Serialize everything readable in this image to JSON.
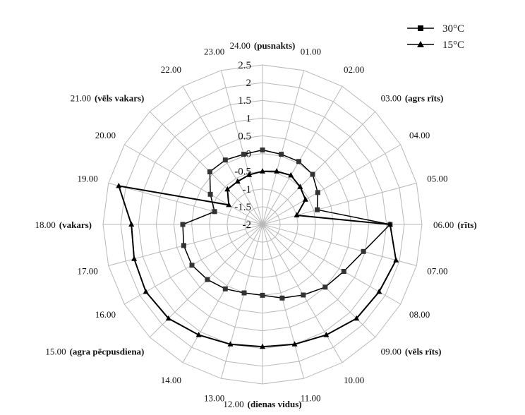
{
  "chart_data": {
    "type": "radar",
    "title": "",
    "categories": [
      {
        "time": "24.00",
        "note": "(pusnakts)"
      },
      {
        "time": "01.00",
        "note": ""
      },
      {
        "time": "02.00",
        "note": ""
      },
      {
        "time": "03.00",
        "note": "(agrs rīts)"
      },
      {
        "time": "04.00",
        "note": ""
      },
      {
        "time": "05.00",
        "note": ""
      },
      {
        "time": "06.00",
        "note": "(rīts)"
      },
      {
        "time": "07.00",
        "note": ""
      },
      {
        "time": "08.00",
        "note": ""
      },
      {
        "time": "09.00",
        "note": "(vēls rīts)"
      },
      {
        "time": "10.00",
        "note": ""
      },
      {
        "time": "11.00",
        "note": ""
      },
      {
        "time": "12.00",
        "note": "(dienas vidus)"
      },
      {
        "time": "13.00",
        "note": ""
      },
      {
        "time": "14.00",
        "note": ""
      },
      {
        "time": "15.00",
        "note": "(agra pēcpusdiena)"
      },
      {
        "time": "16.00",
        "note": ""
      },
      {
        "time": "17.00",
        "note": ""
      },
      {
        "time": "18.00",
        "note": "(vakars)"
      },
      {
        "time": "19.00",
        "note": ""
      },
      {
        "time": "20.00",
        "note": ""
      },
      {
        "time": "21.00",
        "note": "(vēls vakars)"
      },
      {
        "time": "22.00",
        "note": ""
      },
      {
        "time": "23.00",
        "note": ""
      }
    ],
    "r_ticks": [
      "-2",
      "-1.5",
      "-1",
      "-0.5",
      "0",
      "0.5",
      "1",
      "1.5",
      "2",
      "2.5"
    ],
    "rlim": [
      -2,
      2.5
    ],
    "grid": true,
    "legend_position": "top-right",
    "series": [
      {
        "name": "30°C",
        "marker": "square",
        "color": "#000000",
        "values": [
          0.1,
          0.05,
          0.05,
          0.0,
          -0.2,
          -0.4,
          1.6,
          0.95,
          0.65,
          0.5,
          0.3,
          0.15,
          0.0,
          0.0,
          0.1,
          0.2,
          0.3,
          0.3,
          0.25,
          -0.6,
          -0.3,
          0.1,
          0.1,
          0.05
        ]
      },
      {
        "name": "15°C",
        "marker": "triangle",
        "color": "#000000",
        "values": [
          -0.5,
          -0.45,
          -0.4,
          -0.5,
          -0.6,
          -1.0,
          1.6,
          1.9,
          1.8,
          1.75,
          1.6,
          1.5,
          1.45,
          1.5,
          1.6,
          1.75,
          1.8,
          1.75,
          1.7,
          2.2,
          -0.9,
          -0.6,
          -0.6,
          -0.55
        ]
      }
    ]
  }
}
